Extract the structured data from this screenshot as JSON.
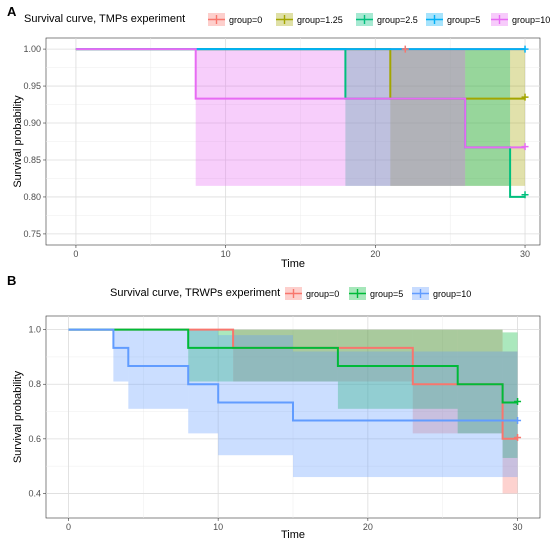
{
  "chart_data": [
    {
      "panel": "A",
      "type": "line",
      "title": "Survival curve, TMPs experiment",
      "xlabel": "Time",
      "ylabel": "Survival probability",
      "xlim": [
        -2,
        31
      ],
      "ylim": [
        0.735,
        1.015
      ],
      "xticks": [
        0,
        10,
        20,
        30
      ],
      "yticks": [
        0.75,
        0.8,
        0.85,
        0.9,
        0.95,
        1.0
      ],
      "ytick_labels": [
        "0.75",
        "0.80",
        "0.85",
        "0.90",
        "0.95",
        "1.00"
      ],
      "legend_placement": "top",
      "grid": true,
      "series": [
        {
          "name": "group=0",
          "color": "#F8766D",
          "steps": [
            [
              0,
              1.0
            ],
            [
              30,
              1.0
            ]
          ],
          "ci": [],
          "censor": [
            [
              22,
              1.0
            ]
          ]
        },
        {
          "name": "group=1.25",
          "color": "#A3A500",
          "steps": [
            [
              0,
              1.0
            ],
            [
              21,
              1.0
            ],
            [
              21,
              0.933
            ],
            [
              30,
              0.933
            ]
          ],
          "ci": [
            {
              "x0": 21,
              "x1": 30,
              "lo": 0.815,
              "hi": 1.0
            }
          ],
          "censor": [
            [
              30,
              0.935
            ]
          ]
        },
        {
          "name": "group=2.5",
          "color": "#00BF7D",
          "steps": [
            [
              0,
              1.0
            ],
            [
              18,
              1.0
            ],
            [
              18,
              0.933
            ],
            [
              26,
              0.933
            ],
            [
              26,
              0.867
            ],
            [
              29,
              0.867
            ],
            [
              29,
              0.8
            ],
            [
              30,
              0.8
            ]
          ],
          "ci": [
            {
              "x0": 18,
              "x1": 26,
              "lo": 0.815,
              "hi": 1.0
            },
            {
              "x0": 26,
              "x1": 29,
              "lo": 0.815,
              "hi": 1.0
            }
          ],
          "censor": [
            [
              30,
              0.803
            ]
          ]
        },
        {
          "name": "group=5",
          "color": "#00B0F6",
          "steps": [
            [
              0,
              1.0
            ],
            [
              30,
              1.0
            ]
          ],
          "ci": [],
          "censor": [
            [
              30,
              1.0
            ]
          ]
        },
        {
          "name": "group=10",
          "color": "#E76BF3",
          "steps": [
            [
              0,
              1.0
            ],
            [
              8,
              1.0
            ],
            [
              8,
              0.933
            ],
            [
              26,
              0.933
            ],
            [
              26,
              0.867
            ],
            [
              30,
              0.867
            ]
          ],
          "ci": [
            {
              "x0": 8,
              "x1": 26,
              "lo": 0.815,
              "hi": 1.0
            }
          ],
          "censor": [
            [
              30,
              0.868
            ]
          ]
        }
      ]
    },
    {
      "panel": "B",
      "type": "line",
      "title": "Survival curve, TRWPs experiment",
      "xlabel": "Time",
      "ylabel": "Survival probability",
      "xlim": [
        -1.5,
        31.5
      ],
      "ylim": [
        0.31,
        1.05
      ],
      "xticks": [
        0,
        10,
        20,
        30
      ],
      "yticks": [
        0.4,
        0.6,
        0.8,
        1.0
      ],
      "ytick_labels": [
        "0.4",
        "0.6",
        "0.8",
        "1.0"
      ],
      "legend_placement": "top",
      "grid": true,
      "series": [
        {
          "name": "group=0",
          "color": "#F8766D",
          "steps": [
            [
              0,
              1.0
            ],
            [
              11,
              1.0
            ],
            [
              11,
              0.933
            ],
            [
              23,
              0.933
            ],
            [
              23,
              0.8
            ],
            [
              29,
              0.8
            ],
            [
              29,
              0.6
            ],
            [
              30,
              0.6
            ]
          ],
          "ci": [
            {
              "x0": 11,
              "x1": 15,
              "lo": 0.81,
              "hi": 1.0
            },
            {
              "x0": 15,
              "x1": 23,
              "lo": 0.81,
              "hi": 1.0
            },
            {
              "x0": 23,
              "x1": 29,
              "lo": 0.62,
              "hi": 1.0
            },
            {
              "x0": 29,
              "x1": 30,
              "lo": 0.4,
              "hi": 0.92
            }
          ],
          "censor": [
            [
              30,
              0.605
            ]
          ]
        },
        {
          "name": "group=5",
          "color": "#00BA38",
          "steps": [
            [
              0,
              1.0
            ],
            [
              8,
              1.0
            ],
            [
              8,
              0.933
            ],
            [
              18,
              0.933
            ],
            [
              18,
              0.867
            ],
            [
              26,
              0.867
            ],
            [
              26,
              0.8
            ],
            [
              29,
              0.8
            ],
            [
              29,
              0.733
            ],
            [
              30,
              0.733
            ]
          ],
          "ci": [
            {
              "x0": 8,
              "x1": 11,
              "lo": 0.81,
              "hi": 1.0
            },
            {
              "x0": 11,
              "x1": 15,
              "lo": 0.81,
              "hi": 1.0
            },
            {
              "x0": 15,
              "x1": 18,
              "lo": 0.81,
              "hi": 1.0
            },
            {
              "x0": 18,
              "x1": 26,
              "lo": 0.71,
              "hi": 1.0
            },
            {
              "x0": 26,
              "x1": 29,
              "lo": 0.62,
              "hi": 1.0
            },
            {
              "x0": 29,
              "x1": 30,
              "lo": 0.53,
              "hi": 0.99
            }
          ],
          "censor": [
            [
              30,
              0.737
            ]
          ]
        },
        {
          "name": "group=10",
          "color": "#619CFF",
          "steps": [
            [
              0,
              1.0
            ],
            [
              3,
              1.0
            ],
            [
              3,
              0.933
            ],
            [
              4,
              0.933
            ],
            [
              4,
              0.867
            ],
            [
              8,
              0.867
            ],
            [
              8,
              0.8
            ],
            [
              10,
              0.8
            ],
            [
              10,
              0.733
            ],
            [
              15,
              0.733
            ],
            [
              15,
              0.667
            ],
            [
              30,
              0.667
            ]
          ],
          "ci": [
            {
              "x0": 3,
              "x1": 4,
              "lo": 0.81,
              "hi": 1.0
            },
            {
              "x0": 4,
              "x1": 8,
              "lo": 0.71,
              "hi": 1.0
            },
            {
              "x0": 8,
              "x1": 10,
              "lo": 0.62,
              "hi": 1.0
            },
            {
              "x0": 10,
              "x1": 15,
              "lo": 0.54,
              "hi": 0.98
            },
            {
              "x0": 15,
              "x1": 30,
              "lo": 0.46,
              "hi": 0.92
            }
          ],
          "censor": [
            [
              30,
              0.667
            ]
          ]
        }
      ]
    }
  ]
}
